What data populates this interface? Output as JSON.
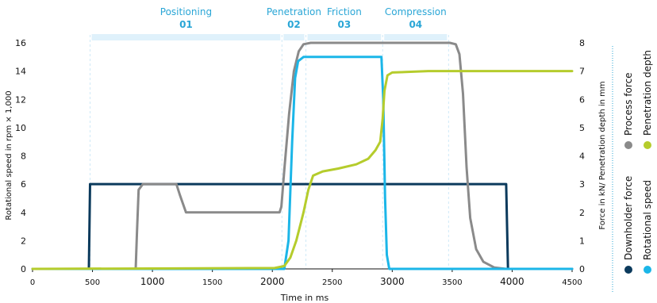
{
  "colors": {
    "axis": "#111111",
    "phase_text": "#2aa6d6",
    "phase_bar": "#dff1fb",
    "guide": "#cfe9f7",
    "legend_sep": "#2aa6d6"
  },
  "phases": [
    {
      "name": "Positioning",
      "number": "01",
      "range": [
        480,
        2080
      ]
    },
    {
      "name": "Penetration",
      "number": "02",
      "range": [
        2080,
        2280
      ]
    },
    {
      "name": "Friction",
      "number": "03",
      "range": [
        2280,
        2920
      ]
    },
    {
      "name": "Compression",
      "number": "04",
      "range": [
        2920,
        3470
      ]
    }
  ],
  "chart_data": {
    "type": "line",
    "xlabel": "Time in ms",
    "ylabel_left": "Rotational speed in rpm × 1,000",
    "ylabel_right": "Force in kN/ Penetration depth in mm",
    "xlim": [
      0,
      4500
    ],
    "ylim_left": [
      0,
      16
    ],
    "ylim_right": [
      0,
      8
    ],
    "x_ticks": [
      0,
      500,
      1000,
      1500,
      2000,
      2500,
      3000,
      3500,
      4000,
      4500
    ],
    "x_ticks_bold": [
      1000,
      2000,
      3000,
      4000
    ],
    "y_ticks_left": [
      0,
      2,
      4,
      6,
      8,
      10,
      12,
      14,
      16
    ],
    "y_ticks_right": [
      0,
      1,
      2,
      3,
      4,
      5,
      6,
      7,
      8
    ],
    "grid": false,
    "legend_position": "right",
    "series": [
      {
        "name": "Downholder force",
        "color": "#0b3a5c",
        "axis": "right",
        "points": [
          [
            0,
            0
          ],
          [
            470,
            0
          ],
          [
            480,
            3
          ],
          [
            3950,
            3
          ],
          [
            3965,
            0
          ],
          [
            4500,
            0
          ]
        ]
      },
      {
        "name": "Process force",
        "color": "#8a8a8a",
        "axis": "right",
        "points": [
          [
            0,
            0
          ],
          [
            860,
            0
          ],
          [
            870,
            1.2
          ],
          [
            885,
            2.8
          ],
          [
            920,
            3
          ],
          [
            1200,
            3
          ],
          [
            1230,
            2.6
          ],
          [
            1280,
            2
          ],
          [
            2060,
            2
          ],
          [
            2075,
            2.2
          ],
          [
            2100,
            3.5
          ],
          [
            2140,
            5.5
          ],
          [
            2180,
            7.0
          ],
          [
            2220,
            7.7
          ],
          [
            2260,
            7.95
          ],
          [
            2320,
            8
          ],
          [
            3480,
            8
          ],
          [
            3530,
            7.95
          ],
          [
            3560,
            7.6
          ],
          [
            3590,
            6.2
          ],
          [
            3620,
            3.6
          ],
          [
            3650,
            1.8
          ],
          [
            3700,
            0.7
          ],
          [
            3760,
            0.25
          ],
          [
            3850,
            0.05
          ],
          [
            3950,
            0
          ],
          [
            4500,
            0
          ]
        ]
      },
      {
        "name": "Rotational speed",
        "color": "#1bb6e8",
        "axis": "left",
        "points": [
          [
            0,
            0
          ],
          [
            2100,
            0
          ],
          [
            2135,
            2
          ],
          [
            2165,
            9
          ],
          [
            2190,
            13.5
          ],
          [
            2215,
            14.7
          ],
          [
            2260,
            15
          ],
          [
            2910,
            15
          ],
          [
            2925,
            12
          ],
          [
            2940,
            5
          ],
          [
            2955,
            1
          ],
          [
            2975,
            0
          ],
          [
            4500,
            0
          ]
        ]
      },
      {
        "name": "Penetration depth",
        "color": "#b5cc2c",
        "axis": "right",
        "points": [
          [
            0,
            0
          ],
          [
            2020,
            0.03
          ],
          [
            2100,
            0.1
          ],
          [
            2150,
            0.4
          ],
          [
            2200,
            1.0
          ],
          [
            2260,
            2.0
          ],
          [
            2300,
            2.8
          ],
          [
            2340,
            3.3
          ],
          [
            2420,
            3.45
          ],
          [
            2550,
            3.55
          ],
          [
            2700,
            3.7
          ],
          [
            2800,
            3.9
          ],
          [
            2860,
            4.2
          ],
          [
            2900,
            4.5
          ],
          [
            2920,
            5.3
          ],
          [
            2935,
            6.3
          ],
          [
            2960,
            6.85
          ],
          [
            3000,
            6.95
          ],
          [
            3300,
            7.0
          ],
          [
            4500,
            7.0
          ]
        ]
      }
    ]
  }
}
